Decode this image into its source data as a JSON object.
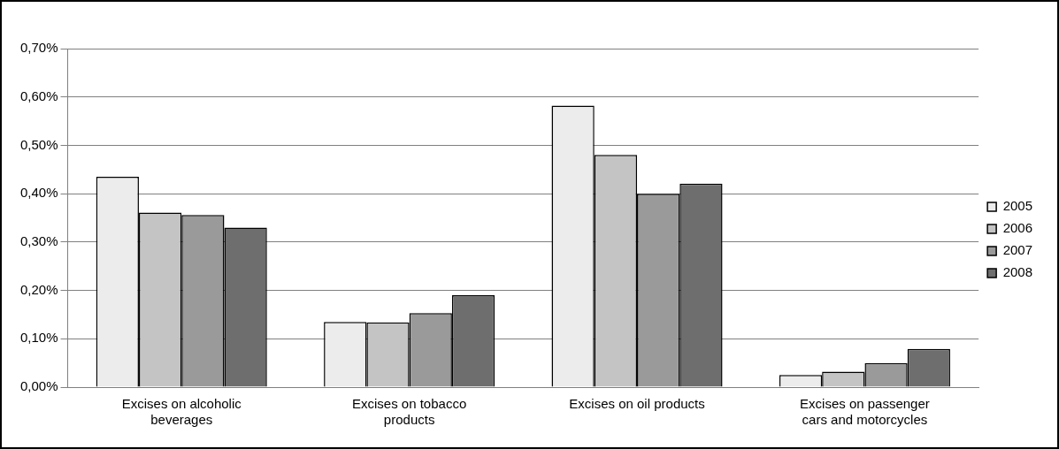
{
  "chart_data": {
    "type": "bar",
    "categories": [
      "Excises on alcoholic beverages",
      "Excises on tobacco products",
      "Excises on oil products",
      "Excises on passenger cars and motorcycles"
    ],
    "series": [
      {
        "name": "2005",
        "color": "#ececec",
        "values": [
          0.435,
          0.135,
          0.582,
          0.025
        ]
      },
      {
        "name": "2006",
        "color": "#c4c4c4",
        "values": [
          0.361,
          0.134,
          0.48,
          0.032
        ]
      },
      {
        "name": "2007",
        "color": "#9a9a9a",
        "values": [
          0.356,
          0.153,
          0.4,
          0.05
        ]
      },
      {
        "name": "2008",
        "color": "#6e6e6e",
        "values": [
          0.33,
          0.19,
          0.421,
          0.079
        ]
      }
    ],
    "ylim": [
      0,
      0.7
    ],
    "yticks": [
      {
        "value": 0,
        "label": "0,00%"
      },
      {
        "value": 0.1,
        "label": "0,10%"
      },
      {
        "value": 0.2,
        "label": "0,20%"
      },
      {
        "value": 0.3,
        "label": "0,30%"
      },
      {
        "value": 0.4,
        "label": "0,40%"
      },
      {
        "value": 0.5,
        "label": "0,50%"
      },
      {
        "value": 0.6,
        "label": "0,60%"
      },
      {
        "value": 0.7,
        "label": "0,70%"
      }
    ],
    "grid": "y",
    "legend": "right"
  }
}
